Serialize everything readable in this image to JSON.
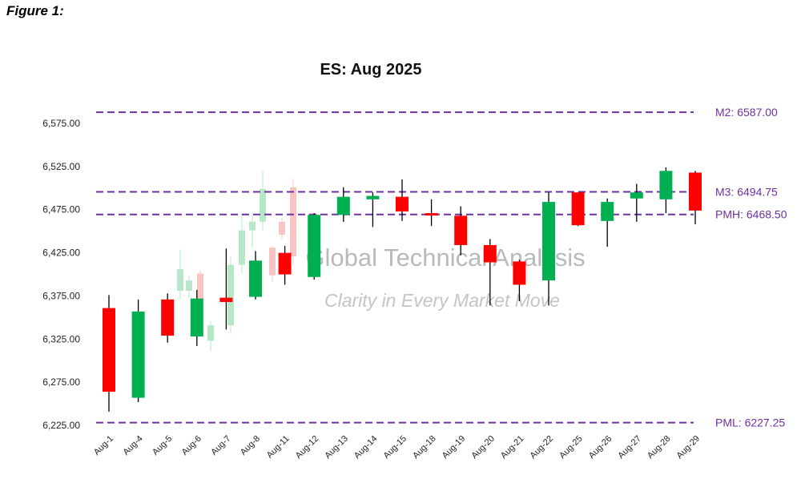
{
  "figure_label": "Figure 1:",
  "watermark": {
    "title": "Global Technical Analysis",
    "tagline": "Clarity in Every Market Move"
  },
  "colors": {
    "up": "#00b050",
    "down": "#ff0000",
    "wick": "#000000",
    "reference_line": "#7030a0",
    "ghost_up": "#b6e8c8",
    "ghost_down": "#f9c4c4"
  },
  "chart_data": {
    "type": "candlestick",
    "title": "ES: Aug 2025",
    "ylim": [
      6225,
      6600
    ],
    "y_ticks": [
      6225,
      6275,
      6325,
      6375,
      6425,
      6475,
      6525,
      6575
    ],
    "y_tick_labels": [
      "6,225.00",
      "6,275.00",
      "6,325.00",
      "6,375.00",
      "6,425.00",
      "6,475.00",
      "6,525.00",
      "6,575.00"
    ],
    "categories": [
      "Aug-1",
      "Aug-4",
      "Aug-5",
      "Aug-6",
      "Aug-7",
      "Aug-8",
      "Aug-11",
      "Aug-12",
      "Aug-13",
      "Aug-14",
      "Aug-15",
      "Aug-18",
      "Aug-19",
      "Aug-20",
      "Aug-21",
      "Aug-22",
      "Aug-25",
      "Aug-26",
      "Aug-27",
      "Aug-28",
      "Aug-29"
    ],
    "candles": [
      {
        "open": 6360,
        "high": 6375,
        "low": 6240,
        "close": 6263
      },
      {
        "open": 6256,
        "high": 6370,
        "low": 6251,
        "close": 6356
      },
      {
        "open": 6370,
        "high": 6377,
        "low": 6320,
        "close": 6328
      },
      {
        "open": 6327,
        "high": 6381,
        "low": 6316,
        "close": 6371
      },
      {
        "open": 6372,
        "high": 6429,
        "low": 6335,
        "close": 6367
      },
      {
        "open": 6373,
        "high": 6426,
        "low": 6370,
        "close": 6415
      },
      {
        "open": 6424,
        "high": 6432,
        "low": 6387,
        "close": 6399
      },
      {
        "open": 6396,
        "high": 6470,
        "low": 6393,
        "close": 6468
      },
      {
        "open": 6468,
        "high": 6500,
        "low": 6460,
        "close": 6489
      },
      {
        "open": 6486,
        "high": 6494,
        "low": 6454,
        "close": 6490
      },
      {
        "open": 6489,
        "high": 6509,
        "low": 6461,
        "close": 6472
      },
      {
        "open": 6470,
        "high": 6486,
        "low": 6455,
        "close": 6468
      },
      {
        "open": 6467,
        "high": 6478,
        "low": 6421,
        "close": 6433
      },
      {
        "open": 6433,
        "high": 6440,
        "low": 6363,
        "close": 6413
      },
      {
        "open": 6414,
        "high": 6416,
        "low": 6368,
        "close": 6387
      },
      {
        "open": 6392,
        "high": 6494,
        "low": 6363,
        "close": 6483
      },
      {
        "open": 6494,
        "high": 6494,
        "low": 6455,
        "close": 6456
      },
      {
        "open": 6461,
        "high": 6487,
        "low": 6431,
        "close": 6483
      },
      {
        "open": 6487,
        "high": 6504,
        "low": 6460,
        "close": 6494
      },
      {
        "open": 6486,
        "high": 6523,
        "low": 6470,
        "close": 6519
      },
      {
        "open": 6517,
        "high": 6519,
        "low": 6457,
        "close": 6473
      }
    ],
    "reference_lines": [
      {
        "label": "M2: 6587.00",
        "value": 6587.0
      },
      {
        "label": "M3: 6494.75",
        "value": 6494.75
      },
      {
        "label": "PMH: 6468.50",
        "value": 6468.5
      },
      {
        "label": "PML: 6227.25",
        "value": 6227.25
      }
    ],
    "ghost_candles": [
      {
        "open": 6380,
        "high": 6428,
        "low": 6370,
        "close": 6405
      },
      {
        "open": 6380,
        "high": 6397,
        "low": 6372,
        "close": 6392
      },
      {
        "open": 6400,
        "high": 6404,
        "low": 6365,
        "close": 6370
      },
      {
        "open": 6322,
        "high": 6345,
        "low": 6310,
        "close": 6340
      },
      {
        "open": 6340,
        "high": 6420,
        "low": 6330,
        "close": 6410
      },
      {
        "open": 6410,
        "high": 6470,
        "low": 6400,
        "close": 6450
      },
      {
        "open": 6450,
        "high": 6470,
        "low": 6430,
        "close": 6460
      },
      {
        "open": 6460,
        "high": 6520,
        "low": 6450,
        "close": 6498
      },
      {
        "open": 6500,
        "high": 6510,
        "low": 6410,
        "close": 6420
      },
      {
        "open": 6460,
        "high": 6465,
        "low": 6440,
        "close": 6445
      },
      {
        "open": 6430,
        "high": 6432,
        "low": 6390,
        "close": 6398
      }
    ],
    "grid": false,
    "legend": "none"
  }
}
